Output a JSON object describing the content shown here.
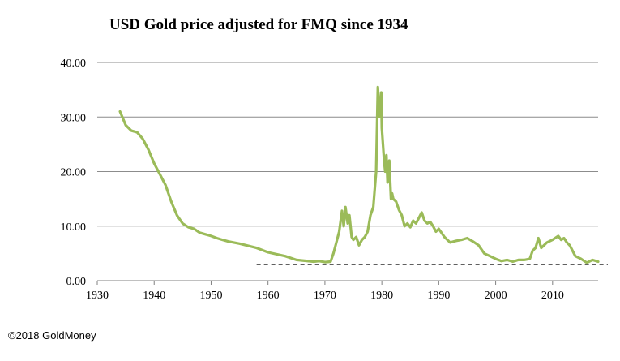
{
  "chart_data": {
    "type": "line",
    "title": "USD Gold price adjusted for FMQ since 1934",
    "xlabel": "",
    "ylabel": "",
    "xlim": [
      1930,
      2018
    ],
    "ylim": [
      0,
      40
    ],
    "x_ticks": [
      "1930",
      "1940",
      "1950",
      "1960",
      "1970",
      "1980",
      "1990",
      "2000",
      "2010"
    ],
    "y_ticks": [
      "0.00",
      "10.00",
      "20.00",
      "30.00",
      "40.00"
    ],
    "grid": "horizontal",
    "series": [
      {
        "name": "Gold price adjusted for FMQ",
        "color": "#9bbb59",
        "x": [
          1934,
          1935,
          1936,
          1937,
          1938,
          1939,
          1940,
          1941,
          1942,
          1943,
          1944,
          1945,
          1946,
          1947,
          1948,
          1949,
          1950,
          1951,
          1952,
          1953,
          1955,
          1958,
          1960,
          1963,
          1965,
          1968,
          1969,
          1970,
          1971,
          1971.5,
          1972,
          1972.5,
          1973,
          1973.3,
          1973.6,
          1974,
          1974.3,
          1974.7,
          1975,
          1975.5,
          1976,
          1976.5,
          1977,
          1977.5,
          1978,
          1978.5,
          1979,
          1979.3,
          1979.6,
          1979.9,
          1980,
          1980.2,
          1980.4,
          1980.6,
          1980.8,
          1981,
          1981.3,
          1981.6,
          1981.8,
          1982,
          1982.5,
          1983,
          1983.5,
          1984,
          1984.5,
          1985,
          1985.5,
          1986,
          1986.5,
          1987,
          1987.5,
          1988,
          1988.5,
          1989,
          1989.5,
          1990,
          1991,
          1992,
          1993,
          1994,
          1995,
          1996,
          1997,
          1998,
          1999,
          2000,
          2001,
          2002,
          2003,
          2004,
          2005,
          2006,
          2006.5,
          2007,
          2007.5,
          2008,
          2008.5,
          2009,
          2010,
          2011,
          2011.5,
          2012,
          2012.5,
          2013,
          2013.5,
          2014,
          2015,
          2016,
          2017,
          2018
        ],
        "values": [
          31,
          28.5,
          27.5,
          27.2,
          26,
          24,
          21.5,
          19.5,
          17.5,
          14.5,
          12,
          10.5,
          9.8,
          9.5,
          8.8,
          8.5,
          8.2,
          7.8,
          7.5,
          7.2,
          6.8,
          6.0,
          5.2,
          4.5,
          3.8,
          3.5,
          3.6,
          3.4,
          3.5,
          5,
          7,
          9,
          12.8,
          10,
          13.5,
          10.5,
          12,
          8,
          7.5,
          8,
          6.5,
          7.5,
          8,
          9,
          12,
          13.5,
          20,
          35.5,
          30,
          34.5,
          28,
          25,
          22,
          20,
          23,
          18,
          22,
          15,
          16,
          15,
          14.5,
          13,
          12,
          10,
          10.5,
          9.8,
          11,
          10.5,
          11.5,
          12.5,
          11,
          10.5,
          10.8,
          10,
          9,
          9.5,
          8,
          7,
          7.3,
          7.5,
          7.8,
          7.2,
          6.5,
          5,
          4.5,
          4,
          3.6,
          3.8,
          3.5,
          3.8,
          3.8,
          4,
          5.5,
          6,
          7.8,
          6,
          6.5,
          7,
          7.5,
          8.2,
          7.5,
          7.8,
          7,
          6.5,
          5.5,
          4.5,
          4,
          3.3,
          3.8,
          3.5
        ]
      }
    ],
    "reference_line": {
      "y": 3,
      "x_start": 1958,
      "x_end": 2018,
      "style": "dashed",
      "color": "#000000"
    }
  },
  "footer": {
    "copyright": "©2018 GoldMoney"
  },
  "colors": {
    "series": "#9bbb59",
    "grid": "#8c8c8c",
    "axis": "#808080"
  }
}
